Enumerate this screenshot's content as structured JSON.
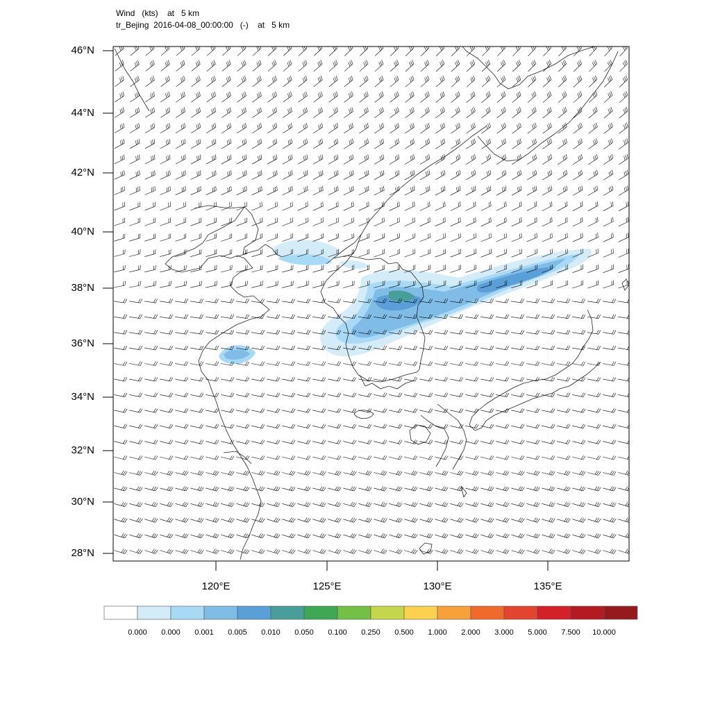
{
  "header": {
    "title_line1": "Wind   (kts)    at   5 km",
    "title_line2": "tr_Bejing  2016-04-08_00:00:00   (-)    at   5 km"
  },
  "axes": {
    "lat_labels": [
      "46°N",
      "44°N",
      "42°N",
      "40°N",
      "38°N",
      "36°N",
      "34°N",
      "32°N",
      "30°N",
      "28°N"
    ],
    "lon_labels": [
      "120°E",
      "125°E",
      "130°E",
      "135°E"
    ]
  },
  "colorbar": {
    "labels": [
      "0.000",
      "0.000",
      "0.001",
      "0.005",
      "0.010",
      "0.050",
      "0.100",
      "0.250",
      "0.500",
      "1.000",
      "2.000",
      "3.000",
      "5.000",
      "7.500",
      "10.000"
    ],
    "colors": [
      "#ffffff",
      "#d4ecf8",
      "#a8daf5",
      "#7fbce6",
      "#5a9fd8",
      "#4a9e9a",
      "#3ea856",
      "#74bf45",
      "#c4d64c",
      "#fbd150",
      "#f7a13a",
      "#f06a2e",
      "#e2452f",
      "#d22129",
      "#b31b22",
      "#951a1d"
    ]
  },
  "precip_colors": {
    "light": "#d4ecf8",
    "lightmid": "#a8daf5",
    "mid": "#7fbce6",
    "dark": "#5a9fd8",
    "teal": "#4a9e9a"
  }
}
